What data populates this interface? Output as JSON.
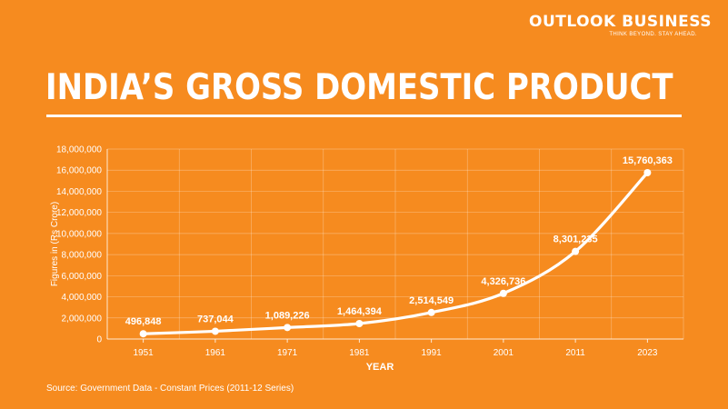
{
  "brand": {
    "name": "OUTLOOK BUSINESS",
    "tagline": "THINK BEYOND. STAY AHEAD."
  },
  "source": "Source: Government Data - Constant Prices (2011-12 Series)",
  "colors": {
    "background": "#f68b1f",
    "foreground": "#ffffff"
  },
  "chart_data": {
    "type": "line",
    "title": "INDIA’S GROSS DOMESTIC PRODUCT",
    "xlabel": "YEAR",
    "ylabel": "Figures in (Rs Crore)",
    "categories": [
      "1951",
      "1961",
      "1971",
      "1981",
      "1991",
      "2001",
      "2011",
      "2023"
    ],
    "series": [
      {
        "values": [
          496848,
          737044,
          1089226,
          1464394,
          2514549,
          4326736,
          8301235,
          15760363
        ],
        "data_labels": [
          "496,848",
          "737,044",
          "1,089,226",
          "1,464,394",
          "2,514,549",
          "4,326,736",
          "8,301,235",
          "15,760,363"
        ]
      }
    ],
    "ylim": [
      0,
      18000000
    ],
    "yticks": [
      0,
      2000000,
      4000000,
      6000000,
      8000000,
      10000000,
      12000000,
      14000000,
      16000000,
      18000000
    ],
    "ytick_labels": [
      "0",
      "2,000,000",
      "4,000,000",
      "6,000,000",
      "8,000,000",
      "10,000,000",
      "12,000,000",
      "14,000,000",
      "16,000,000",
      "18,000,000"
    ],
    "grid": true,
    "curve": "smooth",
    "legend": false
  }
}
